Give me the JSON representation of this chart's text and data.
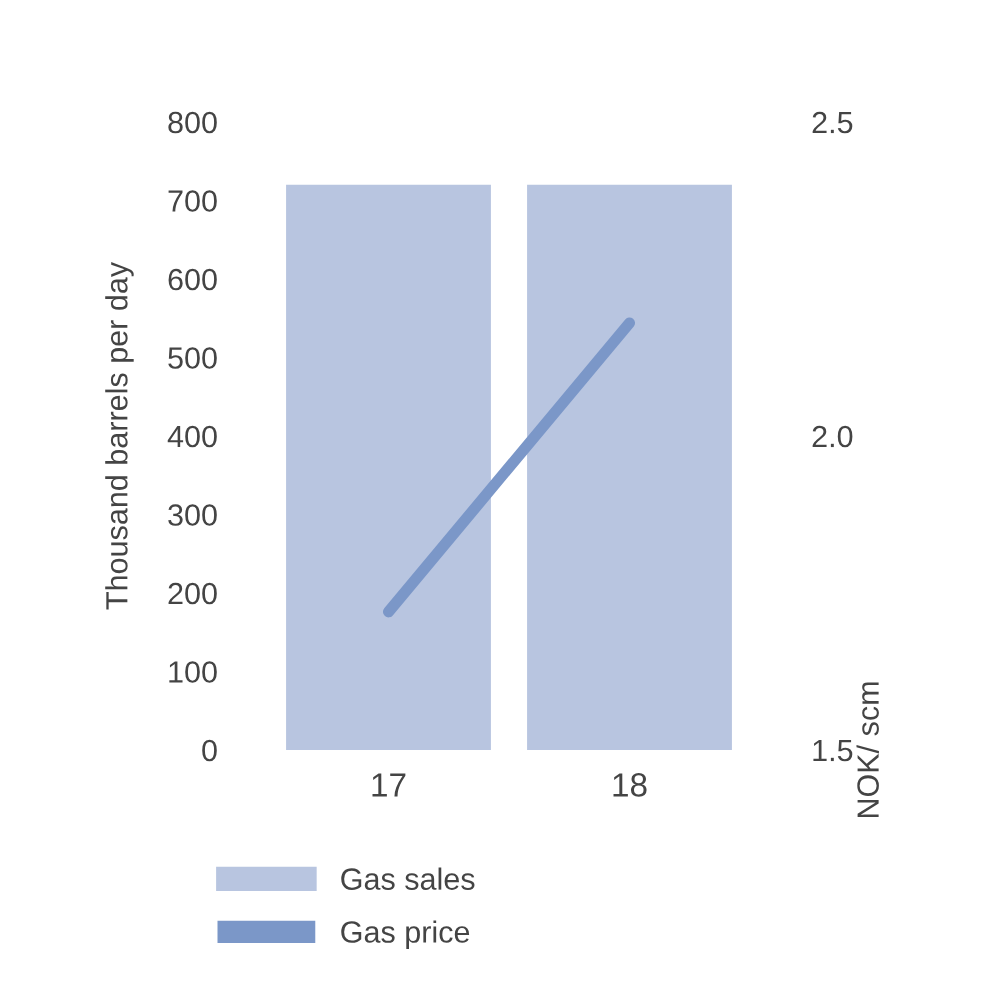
{
  "chart_data": {
    "type": "bar",
    "categories": [
      "17",
      "18"
    ],
    "series": [
      {
        "name": "Gas sales",
        "color": "#b8c5e0",
        "values": [
          720,
          720
        ]
      },
      {
        "name": "Gas price",
        "type": "line",
        "axis": "y2",
        "color": "#7b97c8",
        "values": [
          1.72,
          2.18
        ]
      }
    ],
    "ylabel": "Thousand barrels per day",
    "y2label": "NOK/ scm",
    "ylim": [
      0,
      800
    ],
    "yticks": [
      0,
      100,
      200,
      300,
      400,
      500,
      600,
      700,
      800
    ],
    "y2lim": [
      1.5,
      2.5
    ],
    "y2ticks": [
      {
        "value": 1.5,
        "label": "1.5"
      },
      {
        "value": 2.0,
        "label": "2.0"
      },
      {
        "value": 2.5,
        "label": "2.5"
      }
    ],
    "legend": "bottom left",
    "grid": false,
    "marker": "none",
    "line_style": "solid"
  }
}
